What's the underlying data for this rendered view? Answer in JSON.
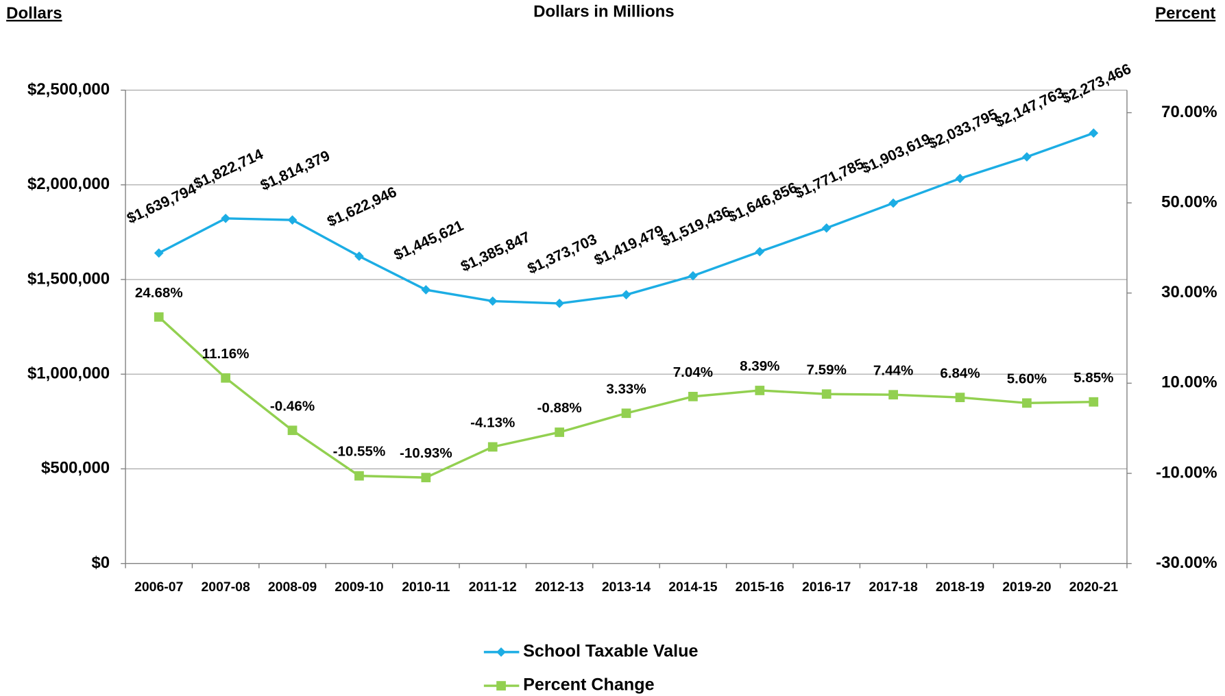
{
  "chart_data": {
    "type": "line",
    "title": "Dollars in Millions",
    "y_axis_label": "Dollars",
    "y2_axis_label": "Percent",
    "categories": [
      "2006-07",
      "2007-08",
      "2008-09",
      "2009-10",
      "2010-11",
      "2011-12",
      "2012-13",
      "2013-14",
      "2014-15",
      "2015-16",
      "2016-17",
      "2017-18",
      "2018-19",
      "2019-20",
      "2020-21"
    ],
    "ylim": [
      0,
      2500000
    ],
    "yticks": [
      {
        "value": 0,
        "label": "$0"
      },
      {
        "value": 500000,
        "label": "$500,000"
      },
      {
        "value": 1000000,
        "label": "$1,000,000"
      },
      {
        "value": 1500000,
        "label": "$1,500,000"
      },
      {
        "value": 2000000,
        "label": "$2,000,000"
      },
      {
        "value": 2500000,
        "label": "$2,500,000"
      }
    ],
    "y2lim": [
      -30,
      75
    ],
    "y2ticks": [
      {
        "value": -30,
        "label": "-30.00%"
      },
      {
        "value": -10,
        "label": "-10.00%"
      },
      {
        "value": 10,
        "label": "10.00%"
      },
      {
        "value": 30,
        "label": "30.00%"
      },
      {
        "value": 50,
        "label": "50.00%"
      },
      {
        "value": 70,
        "label": "70.00%"
      }
    ],
    "grid": true,
    "legend": "bottom",
    "series": [
      {
        "name": "School Taxable Value",
        "color": "#1cade4",
        "marker": "diamond",
        "values": [
          1639794,
          1822714,
          1814379,
          1622946,
          1445621,
          1385847,
          1373703,
          1419479,
          1519436,
          1646856,
          1771785,
          1903619,
          2033795,
          2147763,
          2273466
        ],
        "value_labels": [
          "$1,639,794",
          "$1,822,714",
          "$1,814,379",
          "$1,622,946",
          "$1,445,621",
          "$1,385,847",
          "$1,373,703",
          "$1,419,479",
          "$1,519,436",
          "$1,646,856",
          "$1,771,785",
          "$1,903,619",
          "$2,033,795",
          "$2,147,763",
          "$2,273,466"
        ]
      },
      {
        "name": "Percent Change",
        "color": "#92d050",
        "marker": "square",
        "axis": "y2",
        "values": [
          24.68,
          11.16,
          -0.46,
          -10.55,
          -10.93,
          -4.13,
          -0.88,
          3.33,
          7.04,
          8.39,
          7.59,
          7.44,
          6.84,
          5.6,
          5.85
        ],
        "value_labels": [
          "24.68%",
          "11.16%",
          "-0.46%",
          "-10.55%",
          "-10.93%",
          "-4.13%",
          "-0.88%",
          "3.33%",
          "7.04%",
          "8.39%",
          "7.59%",
          "7.44%",
          "6.84%",
          "5.60%",
          "5.85%"
        ]
      }
    ]
  }
}
